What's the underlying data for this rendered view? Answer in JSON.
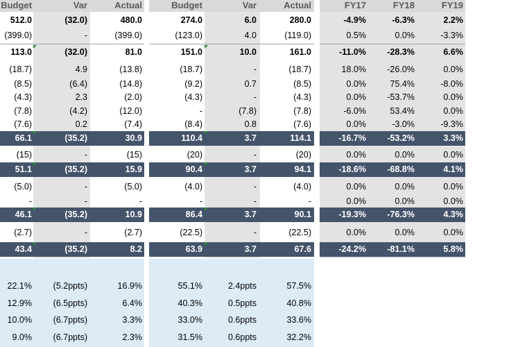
{
  "headers": {
    "group1": [
      "Budget",
      "Var",
      "Actual"
    ],
    "group2": [
      "Budget",
      "Var",
      "Actual"
    ],
    "group3": [
      "FY17",
      "FY18",
      "FY19"
    ]
  },
  "rows": [
    {
      "style": "bold",
      "g1": [
        "512.0",
        "(32.0)",
        "480.0"
      ],
      "g2": [
        "274.0",
        "6.0",
        "280.0"
      ],
      "g3": [
        "-4.9%",
        "-6.3%",
        "2.2%"
      ]
    },
    {
      "style": "normal",
      "g1": [
        "(399.0)",
        "-",
        "(399.0)"
      ],
      "g2": [
        "(123.0)",
        "4.0",
        "(119.0)"
      ],
      "g3": [
        "0.5%",
        "0.0%",
        "-3.3%"
      ]
    },
    {
      "style": "bold",
      "g1": [
        "113.0",
        "(32.0)",
        "81.0"
      ],
      "g2": [
        "151.0",
        "10.0",
        "161.0"
      ],
      "g3": [
        "-11.0%",
        "-28.3%",
        "6.6%"
      ]
    },
    {
      "style": "normal",
      "g1": [
        "(18.7)",
        "4.9",
        "(13.8)"
      ],
      "g2": [
        "(18.7)",
        "-",
        "(18.7)"
      ],
      "g3": [
        "18.0%",
        "-26.0%",
        "0.0%"
      ]
    },
    {
      "style": "normal",
      "g1": [
        "(8.5)",
        "(6.4)",
        "(14.8)"
      ],
      "g2": [
        "(9.2)",
        "0.7",
        "(8.5)"
      ],
      "g3": [
        "0.0%",
        "75.4%",
        "-8.0%"
      ]
    },
    {
      "style": "normal",
      "g1": [
        "(4.3)",
        "2.3",
        "(2.0)"
      ],
      "g2": [
        "(4.3)",
        "-",
        "(4.3)"
      ],
      "g3": [
        "0.0%",
        "-53.7%",
        "0.0%"
      ]
    },
    {
      "style": "normal",
      "g1": [
        "(7.8)",
        "(4.2)",
        "(12.0)"
      ],
      "g2": [
        "-",
        "(7.8)",
        "(7.8)"
      ],
      "g3": [
        "-6.0%",
        "53.4%",
        "0.0%"
      ]
    },
    {
      "style": "normal",
      "g1": [
        "(7.6)",
        "0.2",
        "(7.4)"
      ],
      "g2": [
        "(8.4)",
        "0.8",
        "(7.6)"
      ],
      "g3": [
        "0.0%",
        "-3.0%",
        "-9.3%"
      ]
    },
    {
      "style": "band",
      "g1": [
        "66.1",
        "(35.2)",
        "30.9"
      ],
      "g2": [
        "110.4",
        "3.7",
        "114.1"
      ],
      "g3": [
        "-16.7%",
        "-53.2%",
        "3.3%"
      ]
    },
    {
      "style": "normal",
      "g1": [
        "(15)",
        "-",
        "(15)"
      ],
      "g2": [
        "(20)",
        "-",
        "(20)"
      ],
      "g3": [
        "0.0%",
        "0.0%",
        "0.0%"
      ]
    },
    {
      "style": "band",
      "g1": [
        "51.1",
        "(35.2)",
        "15.9"
      ],
      "g2": [
        "90.4",
        "3.7",
        "94.1"
      ],
      "g3": [
        "-18.6%",
        "-68.8%",
        "4.1%"
      ]
    },
    {
      "style": "normal",
      "g1": [
        "(5.0)",
        "-",
        "(5.0)"
      ],
      "g2": [
        "(4.0)",
        "-",
        "(4.0)"
      ],
      "g3": [
        "0.0%",
        "0.0%",
        "0.0%"
      ]
    },
    {
      "style": "normal",
      "g1": [
        "-",
        "-",
        "-"
      ],
      "g2": [
        "-",
        "-",
        "-"
      ],
      "g3": [
        "0.0%",
        "0.0%",
        "0.0%"
      ]
    },
    {
      "style": "band",
      "g1": [
        "46.1",
        "(35.2)",
        "10.9"
      ],
      "g2": [
        "86.4",
        "3.7",
        "90.1"
      ],
      "g3": [
        "-19.3%",
        "-76.3%",
        "4.3%"
      ]
    },
    {
      "style": "normal",
      "g1": [
        "(2.7)",
        "-",
        "(2.7)"
      ],
      "g2": [
        "(22.5)",
        "-",
        "(22.5)"
      ],
      "g3": [
        "0.0%",
        "0.0%",
        "0.0%"
      ]
    },
    {
      "style": "band",
      "g1": [
        "43.4",
        "(35.2)",
        "8.2"
      ],
      "g2": [
        "63.9",
        "3.7",
        "67.6"
      ],
      "g3": [
        "-24.2%",
        "-81.1%",
        "5.8%"
      ]
    }
  ],
  "ratios": [
    {
      "g1": [
        "22.1%",
        "(5.2ppts)",
        "16.9%"
      ],
      "g2": [
        "55.1%",
        "2.4ppts",
        "57.5%"
      ]
    },
    {
      "g1": [
        "12.9%",
        "(6.5ppts)",
        "6.4%"
      ],
      "g2": [
        "40.3%",
        "0.5ppts",
        "40.8%"
      ]
    },
    {
      "g1": [
        "10.0%",
        "(6.7ppts)",
        "3.3%"
      ],
      "g2": [
        "33.0%",
        "0.6ppts",
        "33.6%"
      ]
    },
    {
      "g1": [
        "9.0%",
        "(6.7ppts)",
        "2.3%"
      ],
      "g2": [
        "31.5%",
        "0.6ppts",
        "32.2%"
      ]
    }
  ],
  "colors": {
    "band": "#44546a",
    "var_column": "#e3e3e3",
    "ratio_panel": "#ddebf7",
    "note_marker": "#2e8b35"
  }
}
